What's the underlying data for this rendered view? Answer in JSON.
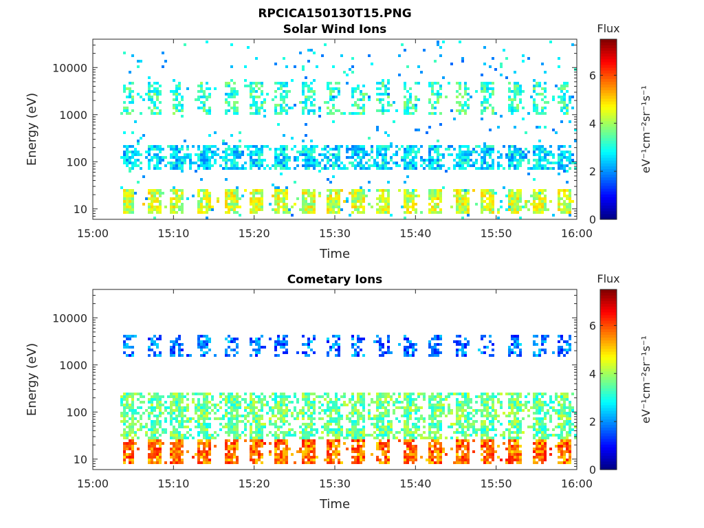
{
  "figure": {
    "main_title": "RPCICA150130T15.PNG"
  },
  "chart_data": [
    {
      "type": "heatmap",
      "title": "Solar Wind Ions",
      "xlabel": "Time",
      "ylabel": "Energy (eV)",
      "x_ticks": [
        "15:00",
        "15:10",
        "15:20",
        "15:30",
        "15:40",
        "15:50",
        "16:00"
      ],
      "x_range": [
        "15:00",
        "16:00"
      ],
      "y_scale": "log",
      "y_range": [
        6,
        40000
      ],
      "y_ticks": [
        {
          "value": 10,
          "label": "10"
        },
        {
          "value": 100,
          "label": "100"
        },
        {
          "value": 1000,
          "label": "1000"
        },
        {
          "value": 10000,
          "label": "10000"
        }
      ],
      "colorbar": {
        "title": "Flux",
        "label": "eV⁻¹cm⁻²sr⁻¹s⁻¹",
        "range": [
          0,
          7.5
        ],
        "ticks": [
          "0",
          "2",
          "4",
          "6"
        ],
        "colormap": "jet"
      },
      "bands": [
        {
          "emin": 6,
          "emax": 40000,
          "flux": 2.5,
          "note": "sparse scattered blue-cyan signal"
        },
        {
          "emin": 1000,
          "emax": 5000,
          "flux": 3.2,
          "note": "periodic columns"
        },
        {
          "emin": 70,
          "emax": 250,
          "flux": 2.6,
          "note": "dense band"
        },
        {
          "emin": 8,
          "emax": 30,
          "flux": 4.3,
          "note": "yellow-green blocks"
        }
      ]
    },
    {
      "type": "heatmap",
      "title": "Cometary Ions",
      "xlabel": "Time",
      "ylabel": "Energy (eV)",
      "x_ticks": [
        "15:00",
        "15:10",
        "15:20",
        "15:30",
        "15:40",
        "15:50",
        "16:00"
      ],
      "x_range": [
        "15:00",
        "16:00"
      ],
      "y_scale": "log",
      "y_range": [
        6,
        40000
      ],
      "y_ticks": [
        {
          "value": 10,
          "label": "10"
        },
        {
          "value": 100,
          "label": "100"
        },
        {
          "value": 1000,
          "label": "1000"
        },
        {
          "value": 10000,
          "label": "10000"
        }
      ],
      "colorbar": {
        "title": "Flux",
        "label": "eV⁻¹cm⁻²sr⁻¹s⁻¹",
        "range": [
          0,
          7.5
        ],
        "ticks": [
          "0",
          "2",
          "4",
          "6"
        ],
        "colormap": "jet"
      },
      "bands": [
        {
          "emin": 1500,
          "emax": 4500,
          "flux": 1.8,
          "note": "periodic blue columns"
        },
        {
          "emin": 30,
          "emax": 280,
          "flux": 3.6,
          "note": "green-yellow band"
        },
        {
          "emin": 8,
          "emax": 30,
          "flux": 5.7,
          "note": "orange-red blocks"
        }
      ]
    }
  ]
}
